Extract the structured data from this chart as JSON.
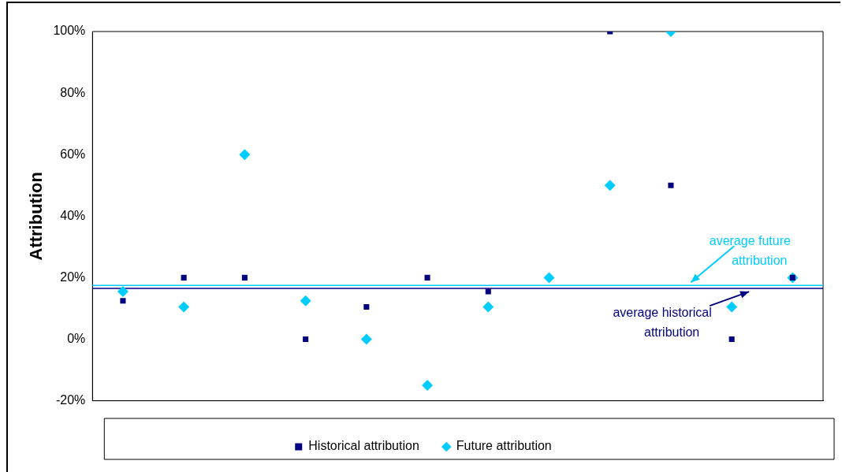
{
  "chart_data": {
    "type": "scatter",
    "ylabel": "Attribution",
    "categories": [
      null,
      null,
      null,
      null,
      null,
      null,
      null,
      null,
      null,
      null,
      null,
      null
    ],
    "series": [
      {
        "name": "Historical attribution",
        "color": "#000080",
        "marker": "square",
        "values": [
          12.5,
          20,
          20,
          0,
          10.5,
          20,
          15.5,
          null,
          100,
          50,
          0,
          20
        ]
      },
      {
        "name": "Future attribution",
        "color": "#00ccff",
        "marker": "diamond",
        "values": [
          15.5,
          10.5,
          60,
          12.5,
          0,
          -15,
          10.5,
          20,
          50,
          100,
          10.5,
          20
        ]
      }
    ],
    "ylim": [
      -20,
      100
    ],
    "yticks": [
      {
        "value": -20,
        "label": "-20%"
      },
      {
        "value": 0,
        "label": "0%"
      },
      {
        "value": 20,
        "label": "20%"
      },
      {
        "value": 40,
        "label": "40%"
      },
      {
        "value": 60,
        "label": "60%"
      },
      {
        "value": 80,
        "label": "80%"
      },
      {
        "value": 100,
        "label": "100%"
      }
    ],
    "ref_lines": [
      {
        "axis": "y",
        "value": 17.5,
        "label": "average future attribution",
        "color": "#00ccff"
      },
      {
        "axis": "y",
        "value": 16.5,
        "label": "average historical attribution",
        "color": "#000080"
      }
    ],
    "grid": false,
    "legend": "bottom"
  }
}
